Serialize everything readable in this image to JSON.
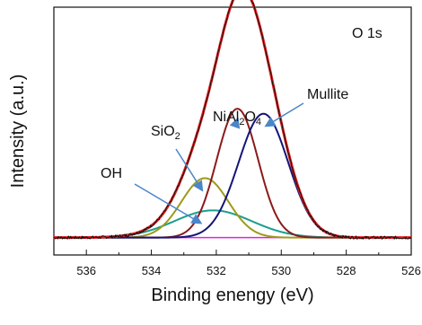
{
  "chart_data": {
    "type": "line",
    "corner_label": "O 1s",
    "xlabel": "Binding enengy (eV)",
    "ylabel": "Intensity (a.u.)",
    "xlim": [
      537,
      526
    ],
    "ylim": [
      0,
      1.0
    ],
    "x_reversed": true,
    "x_ticks": [
      536,
      534,
      532,
      530,
      528,
      526
    ],
    "x_tick_labels": [
      "536",
      "534",
      "532",
      "530",
      "528",
      "526"
    ],
    "grid": false,
    "baseline": 0.07,
    "components": [
      {
        "label": "OH",
        "color": "#1a9e8f",
        "center": 532.1,
        "fwhm": 2.8,
        "height": 0.11
      },
      {
        "label": "SiO2",
        "color": "#9e9a1a",
        "center": 532.35,
        "fwhm": 1.7,
        "height": 0.24
      },
      {
        "label": "NiAl2O4",
        "color": "#8b1a1a",
        "center": 531.35,
        "fwhm": 1.5,
        "height": 0.52
      },
      {
        "label": "Mullite",
        "color": "#141478",
        "center": 530.55,
        "fwhm": 1.8,
        "height": 0.5
      }
    ],
    "envelope": {
      "color": "#e02020",
      "peak_center": 531.2,
      "peak_height": 0.93
    },
    "baseline_line": {
      "color": "#e020e0"
    },
    "data_trace": {
      "color": "#111111"
    },
    "annotations": [
      {
        "text": "OH",
        "target": "OH"
      },
      {
        "text": "SiO2",
        "target": "SiO2"
      },
      {
        "text": "NiAl2O4",
        "target": "NiAl2O4"
      },
      {
        "text": "Mullite",
        "target": "Mullite"
      }
    ],
    "arrow_color": "#4a86c8"
  }
}
